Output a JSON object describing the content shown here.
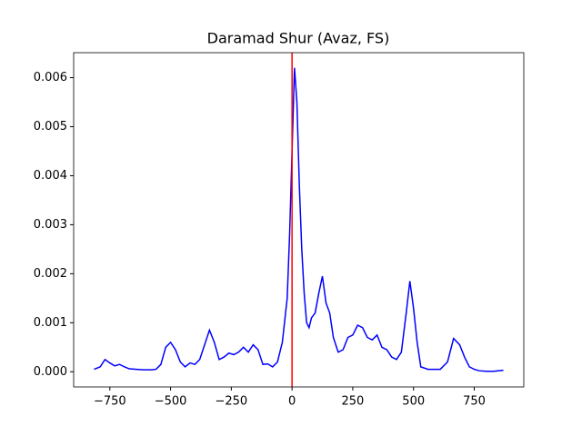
{
  "chart_data": {
    "type": "line",
    "title": "Daramad Shur (Avaz, FS)",
    "x": [
      -815,
      -790,
      -770,
      -750,
      -730,
      -710,
      -690,
      -670,
      -640,
      -610,
      -580,
      -560,
      -540,
      -520,
      -500,
      -480,
      -460,
      -440,
      -420,
      -400,
      -380,
      -360,
      -340,
      -320,
      -300,
      -280,
      -260,
      -240,
      -220,
      -200,
      -180,
      -160,
      -140,
      -120,
      -100,
      -80,
      -60,
      -40,
      -20,
      -10,
      0,
      10,
      20,
      30,
      40,
      50,
      60,
      70,
      80,
      95,
      110,
      125,
      140,
      155,
      170,
      190,
      210,
      230,
      250,
      270,
      290,
      310,
      330,
      350,
      370,
      390,
      410,
      430,
      450,
      470,
      485,
      500,
      515,
      530,
      560,
      590,
      610,
      640,
      665,
      690,
      710,
      730,
      750,
      770,
      800,
      830,
      870
    ],
    "series": [
      {
        "color": "#0000ff",
        "values": [
          5e-05,
          0.0001,
          0.00025,
          0.00018,
          0.00012,
          0.00015,
          0.0001,
          6e-05,
          5e-05,
          4e-05,
          4e-05,
          5e-05,
          0.00015,
          0.0005,
          0.0006,
          0.00045,
          0.0002,
          0.0001,
          0.00018,
          0.00015,
          0.00025,
          0.00055,
          0.00085,
          0.0006,
          0.00025,
          0.0003,
          0.00038,
          0.00035,
          0.0004,
          0.0005,
          0.0004,
          0.00055,
          0.00045,
          0.00015,
          0.00016,
          0.0001,
          0.0002,
          0.0006,
          0.0015,
          0.0028,
          0.0045,
          0.0062,
          0.0055,
          0.0038,
          0.0025,
          0.0016,
          0.001,
          0.0009,
          0.0011,
          0.0012,
          0.0016,
          0.00195,
          0.0014,
          0.0012,
          0.0007,
          0.0004,
          0.00045,
          0.0007,
          0.00075,
          0.00095,
          0.0009,
          0.0007,
          0.00065,
          0.00075,
          0.0005,
          0.00045,
          0.0003,
          0.00025,
          0.0004,
          0.0012,
          0.00185,
          0.0013,
          0.0006,
          0.0001,
          5e-05,
          5e-05,
          5e-05,
          0.0002,
          0.00068,
          0.00055,
          0.0003,
          0.0001,
          5e-05,
          2e-05,
          1e-05,
          1e-05,
          3e-05
        ]
      }
    ],
    "vline": {
      "x": 0,
      "color": "#ff0000"
    },
    "xlim": [
      -899,
      954
    ],
    "ylim": [
      -0.00031,
      0.00651
    ],
    "xticks": [
      {
        "value": -750,
        "label": "−750"
      },
      {
        "value": -500,
        "label": "−500"
      },
      {
        "value": -250,
        "label": "−250"
      },
      0,
      250,
      500,
      750
    ],
    "yticks": [
      {
        "value": 0,
        "label": "0.000"
      },
      {
        "value": 0.001,
        "label": "0.001"
      },
      {
        "value": 0.002,
        "label": "0.002"
      },
      {
        "value": 0.003,
        "label": "0.003"
      },
      {
        "value": 0.004,
        "label": "0.004"
      },
      {
        "value": 0.005,
        "label": "0.005"
      },
      {
        "value": 0.006,
        "label": "0.006"
      }
    ]
  }
}
